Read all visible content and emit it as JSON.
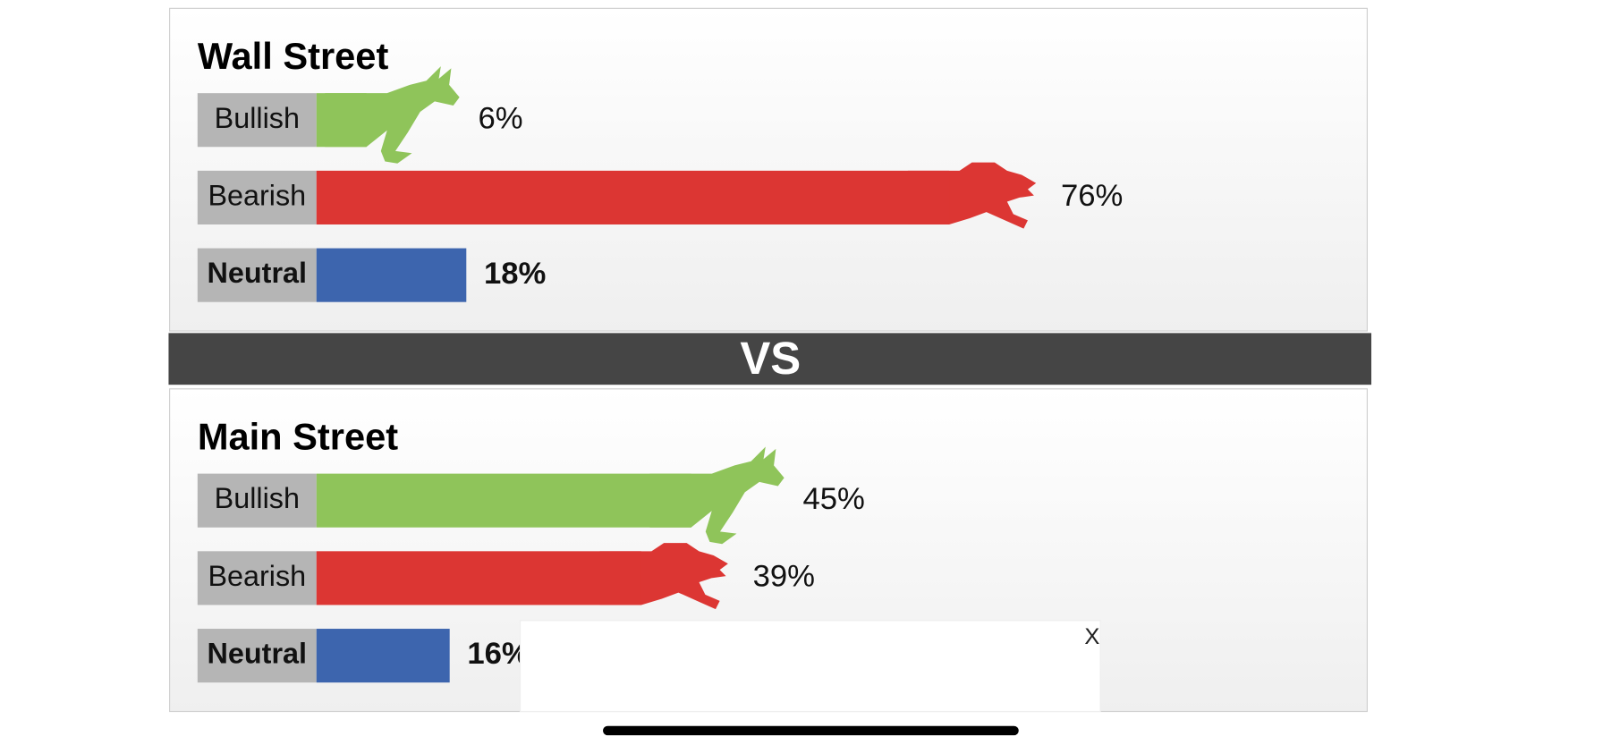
{
  "chart_data": [
    {
      "type": "bar",
      "title": "Wall Street",
      "categories": [
        "Bullish",
        "Bearish",
        "Neutral"
      ],
      "values": [
        6,
        76,
        18
      ],
      "value_labels": [
        "6%",
        "76%",
        "18%"
      ],
      "colors": [
        "#8fc45a",
        "#dc3633",
        "#3d65ae"
      ]
    },
    {
      "type": "bar",
      "title": "Main Street",
      "categories": [
        "Bullish",
        "Bearish",
        "Neutral"
      ],
      "values": [
        45,
        39,
        16
      ],
      "value_labels": [
        "45%",
        "39%",
        "16%"
      ],
      "colors": [
        "#8fc45a",
        "#dc3633",
        "#3d65ae"
      ]
    }
  ],
  "divider": "VS",
  "close_button": "X"
}
